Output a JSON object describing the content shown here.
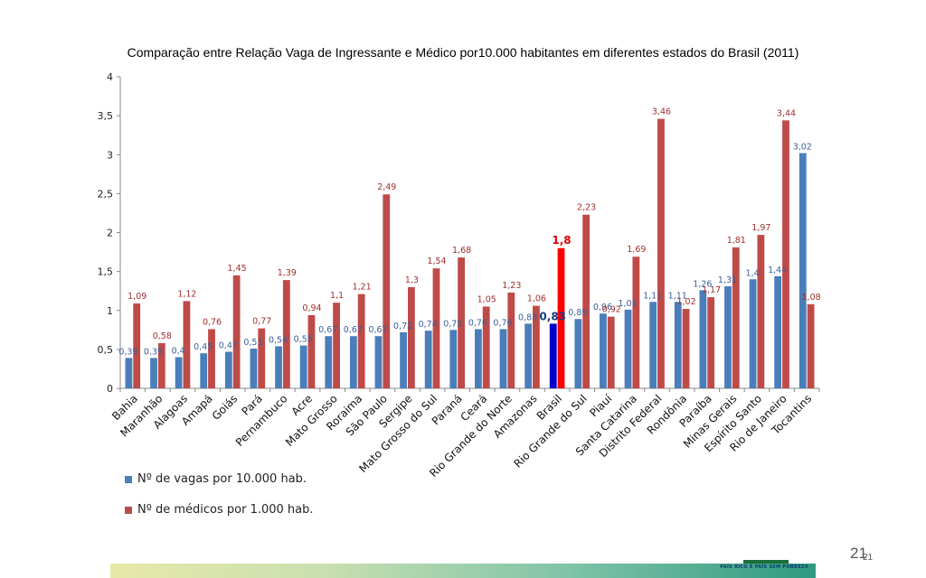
{
  "page": {
    "title": "Comparação entre Relação Vaga de Ingressante e Médico por10.000 habitantes em diferentes estados do Brasil (2011)",
    "page_number": "21",
    "page_number_overlay": "21",
    "footer_text": "PAÍS RICO É PAÍS SEM POBREZA"
  },
  "chart_data": {
    "type": "bar",
    "title": "Comparação entre Relação Vaga de Ingressante e Médico por10.000 habitantes em diferentes estados do Brasil (2011)",
    "xlabel": "",
    "ylabel": "",
    "ylim": [
      0,
      4
    ],
    "yticks": [
      "0",
      "0,5",
      "1",
      "1,5",
      "2",
      "2,5",
      "3",
      "3,5",
      "4"
    ],
    "ytick_values": [
      0,
      0.5,
      1,
      1.5,
      2,
      2.5,
      3,
      3.5,
      4
    ],
    "grid": false,
    "legend_position": "bottom-left",
    "categories": [
      "Bahia",
      "Maranhão",
      "Alagoas",
      "Amapá",
      "Goiás",
      "Pará",
      "Pernambuco",
      "Acre",
      "Mato Grosso",
      "Roraima",
      "São Paulo",
      "Sergipe",
      "Mato Grosso do Sul",
      "Paraná",
      "Ceará",
      "Rio Grande do Norte",
      "Amazonas",
      "Brasil",
      "Rio Grande do Sul",
      "Piauí",
      "Santa Catarina",
      "Distrito Federal",
      "Rondônia",
      "Paraíba",
      "Minas Gerais",
      "Espírito Santo",
      "Rio de Janeiro",
      "Tocantins"
    ],
    "series": [
      {
        "name": "Nº de vagas por 10.000 hab.",
        "color": "#4a7ebb",
        "highlight_color": "#0000cc",
        "values": [
          0.39,
          0.39,
          0.4,
          0.45,
          0.47,
          0.51,
          0.54,
          0.55,
          0.67,
          0.67,
          0.67,
          0.72,
          0.74,
          0.75,
          0.76,
          0.76,
          0.83,
          0.83,
          0.89,
          0.96,
          1.01,
          1.11,
          1.11,
          1.26,
          1.31,
          1.4,
          1.44,
          3.02
        ],
        "labels": [
          "0,39",
          "0,39",
          "0,4",
          "0,45",
          "0,47",
          "0,51",
          "0,54",
          "0,55",
          "0,67",
          "0,67",
          "0,67",
          "0,72",
          "0,74",
          "0,75",
          "0,76",
          "0,76",
          "0,83",
          "0,83",
          "0,89",
          "0,96",
          "1,01",
          "1,11",
          "1,11",
          "1,26",
          "1,31",
          "1,4",
          "1,44",
          "3,02"
        ]
      },
      {
        "name": "Nº de médicos por 1.000 hab.",
        "color": "#be4b48",
        "highlight_color": "#ff0000",
        "values": [
          1.09,
          0.58,
          1.12,
          0.76,
          1.45,
          0.77,
          1.39,
          0.94,
          1.1,
          1.21,
          2.49,
          1.3,
          1.54,
          1.68,
          1.05,
          1.23,
          1.06,
          1.8,
          2.23,
          0.92,
          1.69,
          3.46,
          1.02,
          1.17,
          1.81,
          1.97,
          3.44,
          1.08
        ],
        "labels": [
          "1,09",
          "0,58",
          "1,12",
          "0,76",
          "1,45",
          "0,77",
          "1,39",
          "0,94",
          "1,1",
          "1,21",
          "2,49",
          "1,3",
          "1,54",
          "1,68",
          "1,05",
          "1,23",
          "1,06",
          "1,8",
          "2,23",
          "0,92",
          "1,69",
          "3,46",
          "1,02",
          "1,17",
          "1,81",
          "1,97",
          "3,44",
          "1,08"
        ]
      }
    ],
    "highlight_category": "Brasil"
  }
}
